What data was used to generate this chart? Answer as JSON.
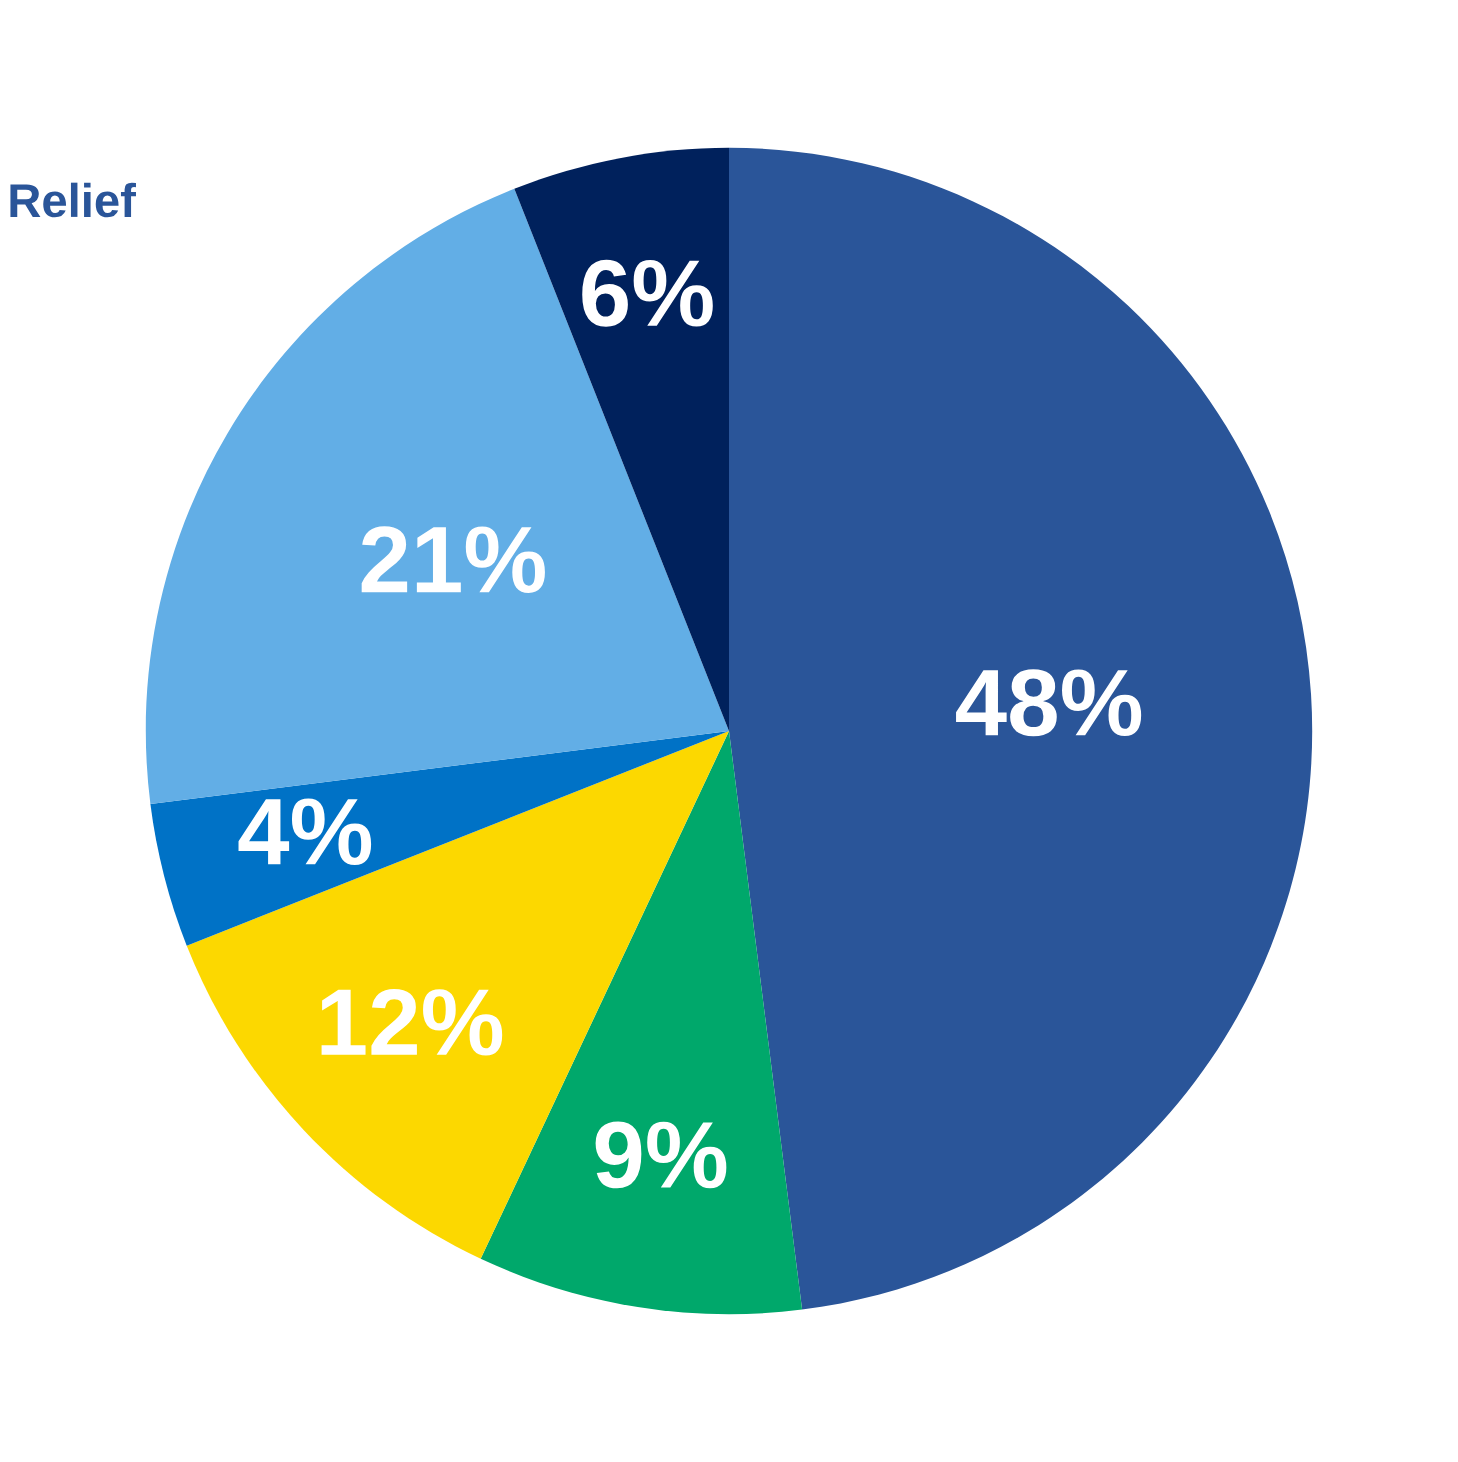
{
  "chart_data": {
    "type": "pie",
    "categories": [
      null,
      null,
      null,
      null,
      null,
      null
    ],
    "values": [
      48,
      9,
      12,
      4,
      21,
      6
    ],
    "colors": [
      "#2a5599",
      "#00a86b",
      "#fcd800",
      "#0072c6",
      "#62aee6",
      "#00215c"
    ],
    "value_labels": [
      "48%",
      "9%",
      "12%",
      "4%",
      "21%",
      "6%"
    ],
    "annotations": [
      "Relief"
    ],
    "legend": false
  }
}
